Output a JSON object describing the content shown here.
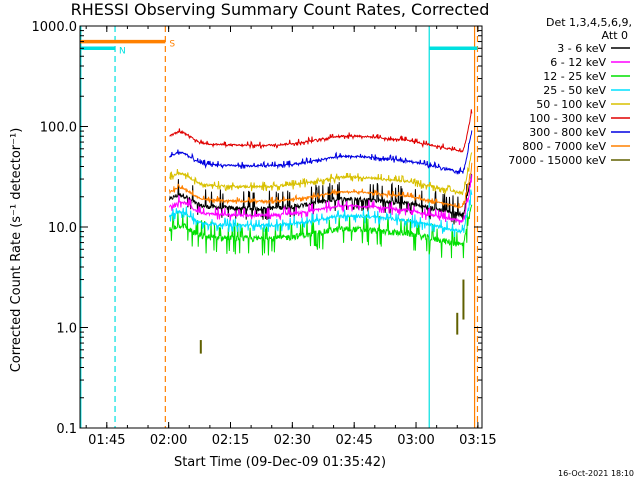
{
  "chart_data": {
    "type": "line",
    "title": "RHESSI Observing Summary Count Rates, Corrected",
    "xlabel": "Start Time (09-Dec-09 01:35:42)",
    "ylabel": "Corrected Count Rate (s⁻¹ detector⁻¹)",
    "yscale": "log",
    "ylim": [
      0.1,
      1000
    ],
    "xlim_minutes_after_0130": [
      8.5,
      106
    ],
    "x_ticks": [
      {
        "label": "01:45",
        "m": 15
      },
      {
        "label": "02:00",
        "m": 30
      },
      {
        "label": "02:15",
        "m": 45
      },
      {
        "label": "02:30",
        "m": 60
      },
      {
        "label": "02:45",
        "m": 75
      },
      {
        "label": "03:00",
        "m": 90
      },
      {
        "label": "03:15",
        "m": 105
      }
    ],
    "y_ticks": [
      {
        "label": "0.1",
        "v": 0.1
      },
      {
        "label": "1.0",
        "v": 1
      },
      {
        "label": "10.0",
        "v": 10
      },
      {
        "label": "100.0",
        "v": 100
      },
      {
        "label": "1000.0",
        "v": 1000
      }
    ],
    "legend": {
      "header1": "Det 1,3,4,5,6,9,",
      "header2": "Att 0",
      "position": "right"
    },
    "series": [
      {
        "name": "3 - 6 keV",
        "color": "#000000",
        "base": 17,
        "noise": 0.1,
        "spike_up": 1.45,
        "spike_dn": 0.8
      },
      {
        "name": "6 - 12 keV",
        "color": "#ff00ff",
        "base": 14.5,
        "noise": 0.06,
        "spike_up": 1.15,
        "spike_dn": 0.9
      },
      {
        "name": "12 - 25 keV",
        "color": "#00e000",
        "base": 8.5,
        "noise": 0.14,
        "spike_up": 1.35,
        "spike_dn": 0.72
      },
      {
        "name": "25 - 50 keV",
        "color": "#00e0ff",
        "base": 11.5,
        "noise": 0.07,
        "spike_up": 1.15,
        "spike_dn": 0.88
      },
      {
        "name": "50 - 100 keV",
        "color": "#d8c000",
        "base": 28,
        "noise": 0.05,
        "spike_up": 1.1,
        "spike_dn": 0.92
      },
      {
        "name": "100 - 300 keV",
        "color": "#e00000",
        "base": 72,
        "noise": 0.04,
        "spike_up": 1.08,
        "spike_dn": 0.95
      },
      {
        "name": "300 - 800 keV",
        "color": "#0000e0",
        "base": 45,
        "noise": 0.04,
        "spike_up": 1.08,
        "spike_dn": 0.95
      },
      {
        "name": "800 - 7000 keV",
        "color": "#ff8000",
        "base": 20,
        "noise": 0.04,
        "spike_up": 1.08,
        "spike_dn": 0.95
      },
      {
        "name": "7000 - 15000 keV",
        "color": "#606000",
        "base": 0.6,
        "noise": 0.0,
        "spike_up": 1.0,
        "spike_dn": 1.0
      }
    ],
    "data_window_minutes": [
      30.2,
      103.6
    ],
    "flags": [
      {
        "label": "N",
        "color": "#00e0e0",
        "start": 8.5,
        "end": 17,
        "level": 600
      },
      {
        "label": "N",
        "color": "#00e0e0",
        "start": 93.2,
        "end": 104.9,
        "level": 600
      },
      {
        "label": "S",
        "color": "#ff8000",
        "start": 8.5,
        "end": 29.2,
        "level": 700
      }
    ],
    "vlines": [
      {
        "m": 8.7,
        "color": "#00e0e0",
        "style": "solid"
      },
      {
        "m": 17,
        "color": "#00e0e0",
        "style": "dashed"
      },
      {
        "m": 29.2,
        "color": "#ff8000",
        "style": "dashed"
      },
      {
        "m": 93.2,
        "color": "#00e0e0",
        "style": "solid"
      },
      {
        "m": 104.2,
        "color": "#ff8000",
        "style": "solid"
      },
      {
        "m": 104.9,
        "color": "#ff8000",
        "style": "dashed"
      }
    ]
  },
  "footer_date": "16-Oct-2021 18:10"
}
